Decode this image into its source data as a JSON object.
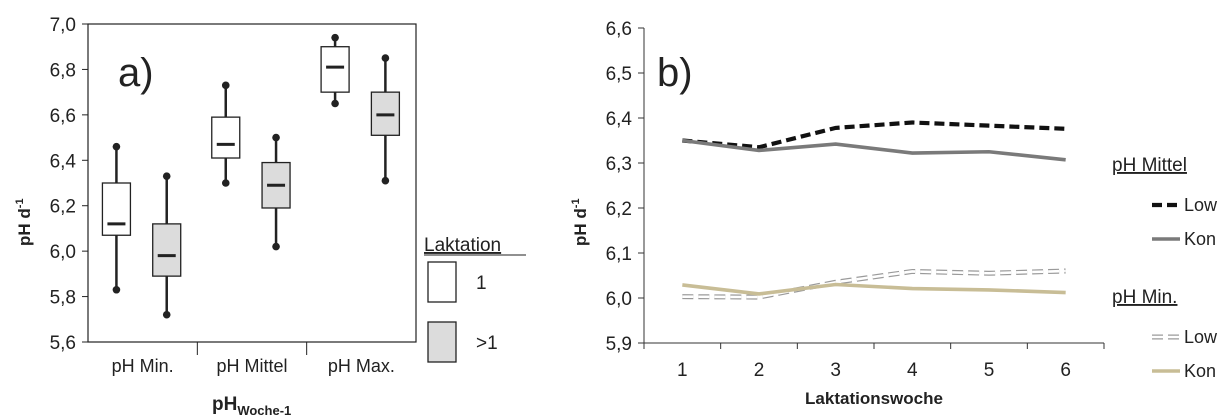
{
  "chart_data": [
    {
      "type": "box",
      "panel_label": "a)",
      "xlabel_main": "pH",
      "xlabel_sub": "Woche-1",
      "ylabel_main": "pH d",
      "ylabel_sup": "-1",
      "ylim": [
        5.6,
        7.0
      ],
      "yticks": [
        "5,6",
        "5,8",
        "6,0",
        "6,2",
        "6,4",
        "6,6",
        "6,8",
        "7,0"
      ],
      "categories": [
        "pH Min.",
        "pH Mittel",
        "pH Max."
      ],
      "legend": {
        "title": "Laktation",
        "items": [
          "1",
          ">1"
        ]
      },
      "colors": {
        "group1": "#ffffff",
        "group2": "#dcdcdc",
        "stroke": "#222222"
      },
      "groups": [
        {
          "category": "pH Min.",
          "series": "1",
          "min": 5.83,
          "q1": 6.07,
          "median": 6.12,
          "q3": 6.3,
          "max": 6.46
        },
        {
          "category": "pH Min.",
          "series": ">1",
          "min": 5.72,
          "q1": 5.89,
          "median": 5.98,
          "q3": 6.12,
          "max": 6.33
        },
        {
          "category": "pH Mittel",
          "series": "1",
          "min": 6.3,
          "q1": 6.41,
          "median": 6.47,
          "q3": 6.59,
          "max": 6.73
        },
        {
          "category": "pH Mittel",
          "series": ">1",
          "min": 6.02,
          "q1": 6.19,
          "median": 6.29,
          "q3": 6.39,
          "max": 6.5
        },
        {
          "category": "pH Max.",
          "series": "1",
          "min": 6.65,
          "q1": 6.7,
          "median": 6.81,
          "q3": 6.9,
          "max": 6.94
        },
        {
          "category": "pH Max.",
          "series": ">1",
          "min": 6.31,
          "q1": 6.51,
          "median": 6.6,
          "q3": 6.7,
          "max": 6.85
        }
      ]
    },
    {
      "type": "line",
      "panel_label": "b)",
      "xlabel": "Laktationswoche",
      "ylabel_main": "pH d",
      "ylabel_sup": "-1",
      "ylim": [
        5.9,
        6.6
      ],
      "yticks": [
        "5,9",
        "6,0",
        "6,1",
        "6,2",
        "6,3",
        "6,4",
        "6,5",
        "6,6"
      ],
      "x": [
        1,
        2,
        3,
        4,
        5,
        6
      ],
      "legend_groups": [
        {
          "title": "pH Mittel",
          "items": [
            "Low",
            "Kon"
          ]
        },
        {
          "title": "pH Min.",
          "items": [
            "Low",
            "Kon"
          ]
        }
      ],
      "series": [
        {
          "group": "pH Mittel",
          "name": "Low",
          "values": [
            6.35,
            6.335,
            6.378,
            6.39,
            6.383,
            6.376
          ],
          "color": "#111111",
          "style": "dashed"
        },
        {
          "group": "pH Mittel",
          "name": "Kon",
          "values": [
            6.35,
            6.328,
            6.342,
            6.322,
            6.325,
            6.307
          ],
          "color": "#7a7a7a",
          "style": "solid"
        },
        {
          "group": "pH Min.",
          "name": "Low",
          "values": [
            6.003,
            6.002,
            6.035,
            6.059,
            6.055,
            6.06
          ],
          "color": "#9a9a9a",
          "style": "dashed-outline"
        },
        {
          "group": "pH Min.",
          "name": "Kon",
          "values": [
            6.029,
            6.009,
            6.03,
            6.021,
            6.018,
            6.012
          ],
          "color": "#c8bd96",
          "style": "solid"
        }
      ]
    }
  ]
}
